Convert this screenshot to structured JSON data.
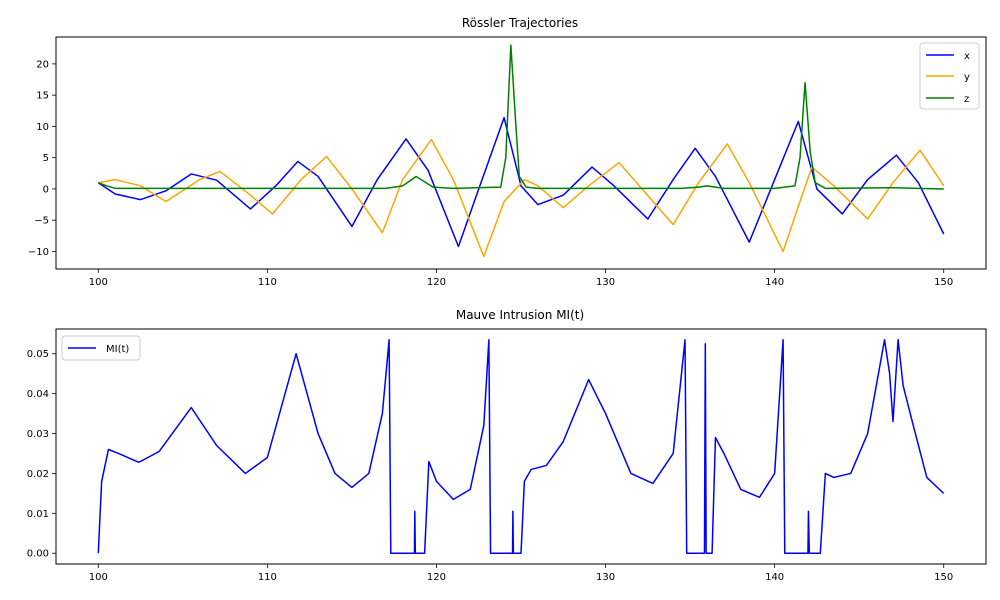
{
  "chart_data": [
    {
      "type": "line",
      "title": "Rössler Trajectories",
      "xlabel": "",
      "ylabel": "",
      "xlim": [
        97.5,
        152.5
      ],
      "ylim": [
        -12.8,
        24.3
      ],
      "xticks": [
        100,
        110,
        120,
        130,
        140,
        150
      ],
      "yticks": [
        -10,
        -5,
        0,
        5,
        10,
        15,
        20
      ],
      "grid": false,
      "legend_position": "top-right",
      "series": [
        {
          "name": "x",
          "color": "#0000ff",
          "points": [
            [
              100,
              1.0
            ],
            [
              101,
              -0.8
            ],
            [
              102.5,
              -1.7
            ],
            [
              104,
              -0.3
            ],
            [
              105.5,
              2.4
            ],
            [
              107,
              1.4
            ],
            [
              109,
              -3.2
            ],
            [
              110.5,
              0.5
            ],
            [
              111.8,
              4.4
            ],
            [
              113,
              2.0
            ],
            [
              115,
              -6.0
            ],
            [
              116.5,
              1.5
            ],
            [
              118.2,
              8.0
            ],
            [
              119.5,
              3.0
            ],
            [
              121.3,
              -9.2
            ],
            [
              122.5,
              0
            ],
            [
              124,
              11.4
            ],
            [
              125,
              0.5
            ],
            [
              126,
              -2.5
            ],
            [
              127.5,
              -1.0
            ],
            [
              129.2,
              3.5
            ],
            [
              130.5,
              0.5
            ],
            [
              132.5,
              -4.8
            ],
            [
              134,
              1.5
            ],
            [
              135.3,
              6.5
            ],
            [
              136.5,
              2.0
            ],
            [
              138.5,
              -8.5
            ],
            [
              140,
              1.5
            ],
            [
              141.4,
              10.8
            ],
            [
              142.5,
              0
            ],
            [
              144,
              -4.0
            ],
            [
              145.5,
              1.5
            ],
            [
              147.2,
              5.4
            ],
            [
              148.5,
              1.0
            ],
            [
              150,
              -7.2
            ]
          ]
        },
        {
          "name": "y",
          "color": "#ffa500",
          "points": [
            [
              100,
              1.0
            ],
            [
              101,
              1.5
            ],
            [
              102.5,
              0.5
            ],
            [
              104,
              -2.0
            ],
            [
              106,
              1.5
            ],
            [
              107.2,
              2.8
            ],
            [
              109,
              -1.0
            ],
            [
              110.3,
              -4.0
            ],
            [
              112,
              1.5
            ],
            [
              113.5,
              5.2
            ],
            [
              115,
              0
            ],
            [
              116.8,
              -7.0
            ],
            [
              118,
              1.5
            ],
            [
              119.7,
              7.9
            ],
            [
              121,
              1.5
            ],
            [
              122.8,
              -10.8
            ],
            [
              124,
              -2.0
            ],
            [
              125.2,
              1.5
            ],
            [
              126,
              0.5
            ],
            [
              127.5,
              -3.0
            ],
            [
              129,
              0.5
            ],
            [
              130.8,
              4.2
            ],
            [
              132,
              0.5
            ],
            [
              134,
              -5.7
            ],
            [
              135.5,
              1.0
            ],
            [
              137.2,
              7.2
            ],
            [
              138.5,
              1.0
            ],
            [
              140.5,
              -10.0
            ],
            [
              141.5,
              -2.0
            ],
            [
              142.2,
              3.5
            ],
            [
              143.5,
              0.5
            ],
            [
              145.5,
              -4.8
            ],
            [
              147,
              1.0
            ],
            [
              148.6,
              6.2
            ],
            [
              150,
              0.5
            ]
          ]
        },
        {
          "name": "z",
          "color": "#008000",
          "points": [
            [
              100,
              1.0
            ],
            [
              100.5,
              0.5
            ],
            [
              101,
              0.1
            ],
            [
              110,
              0.1
            ],
            [
              117,
              0.1
            ],
            [
              118,
              0.5
            ],
            [
              118.8,
              2.0
            ],
            [
              119.8,
              0.3
            ],
            [
              121,
              0.1
            ],
            [
              123.8,
              0.3
            ],
            [
              124.1,
              5.0
            ],
            [
              124.4,
              23.0
            ],
            [
              124.7,
              10.0
            ],
            [
              124.9,
              2.0
            ],
            [
              125.3,
              0.3
            ],
            [
              126,
              0.1
            ],
            [
              130,
              0.1
            ],
            [
              134.5,
              0.1
            ],
            [
              135.5,
              0.3
            ],
            [
              136,
              0.5
            ],
            [
              137,
              0.1
            ],
            [
              140,
              0.1
            ],
            [
              141.2,
              0.5
            ],
            [
              141.5,
              5.0
            ],
            [
              141.8,
              17.0
            ],
            [
              142.1,
              6.0
            ],
            [
              142.4,
              1.0
            ],
            [
              143,
              0.1
            ],
            [
              147,
              0.2
            ],
            [
              150,
              0.0
            ]
          ]
        }
      ]
    },
    {
      "type": "line",
      "title": "Mauve Intrusion MI(t)",
      "xlabel": "",
      "ylabel": "",
      "xlim": [
        97.5,
        152.5
      ],
      "ylim": [
        -0.0027,
        0.0562
      ],
      "xticks": [
        100,
        110,
        120,
        130,
        140,
        150
      ],
      "yticks": [
        0.0,
        0.01,
        0.02,
        0.03,
        0.04,
        0.05
      ],
      "ytick_labels": [
        "0.00",
        "0.01",
        "0.02",
        "0.03",
        "0.04",
        "0.05"
      ],
      "grid": false,
      "legend_position": "top-left",
      "series": [
        {
          "name": "MI(t)",
          "color": "#0000ff",
          "points": [
            [
              100,
              0.0
            ],
            [
              100.2,
              0.018
            ],
            [
              100.6,
              0.026
            ],
            [
              101.2,
              0.025
            ],
            [
              102.4,
              0.0228
            ],
            [
              103.6,
              0.0255
            ],
            [
              105.5,
              0.0365
            ],
            [
              107,
              0.027
            ],
            [
              108.7,
              0.02
            ],
            [
              110,
              0.024
            ],
            [
              111.7,
              0.05
            ],
            [
              113,
              0.03
            ],
            [
              114,
              0.02
            ],
            [
              115,
              0.0165
            ],
            [
              116,
              0.02
            ],
            [
              116.8,
              0.035
            ],
            [
              117.2,
              0.0535
            ],
            [
              117.3,
              0.0
            ],
            [
              118.7,
              0.0
            ],
            [
              118.72,
              0.0105
            ],
            [
              118.75,
              0.0
            ],
            [
              119.3,
              0.0
            ],
            [
              119.55,
              0.023
            ],
            [
              120,
              0.018
            ],
            [
              121,
              0.0135
            ],
            [
              122,
              0.016
            ],
            [
              122.8,
              0.032
            ],
            [
              123.1,
              0.0535
            ],
            [
              123.2,
              0.0
            ],
            [
              124.5,
              0.0
            ],
            [
              124.52,
              0.0105
            ],
            [
              124.55,
              0.0
            ],
            [
              125,
              0.0
            ],
            [
              125.2,
              0.018
            ],
            [
              125.6,
              0.021
            ],
            [
              126.5,
              0.022
            ],
            [
              127.5,
              0.028
            ],
            [
              129,
              0.0435
            ],
            [
              130,
              0.035
            ],
            [
              131.5,
              0.02
            ],
            [
              132.8,
              0.0175
            ],
            [
              134,
              0.025
            ],
            [
              134.7,
              0.0535
            ],
            [
              134.8,
              0.0
            ],
            [
              135.85,
              0.0
            ],
            [
              135.9,
              0.0525
            ],
            [
              135.95,
              0.0
            ],
            [
              136.3,
              0.0
            ],
            [
              136.5,
              0.029
            ],
            [
              137,
              0.025
            ],
            [
              138,
              0.016
            ],
            [
              139.1,
              0.014
            ],
            [
              140,
              0.02
            ],
            [
              140.5,
              0.0535
            ],
            [
              140.6,
              0.0
            ],
            [
              141.97,
              0.0
            ],
            [
              142.0,
              0.0105
            ],
            [
              142.05,
              0.0
            ],
            [
              142.7,
              0.0
            ],
            [
              143,
              0.02
            ],
            [
              143.5,
              0.019
            ],
            [
              144.5,
              0.02
            ],
            [
              145.5,
              0.03
            ],
            [
              146.5,
              0.0535
            ],
            [
              146.8,
              0.045
            ],
            [
              147.0,
              0.033
            ],
            [
              147.3,
              0.0535
            ],
            [
              147.6,
              0.042
            ],
            [
              148.2,
              0.032
            ],
            [
              149,
              0.019
            ],
            [
              150,
              0.015
            ]
          ]
        }
      ]
    }
  ]
}
